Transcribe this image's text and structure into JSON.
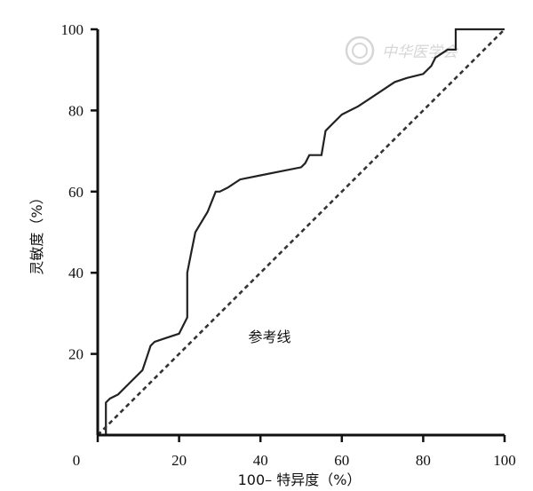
{
  "chart_data": {
    "type": "line",
    "xlabel": "100– 特异度（%）",
    "ylabel": "灵敏度（%）",
    "xlim": [
      0,
      100
    ],
    "ylim": [
      0,
      100
    ],
    "x_ticks": [
      "0",
      "20",
      "40",
      "60",
      "80",
      "100"
    ],
    "y_ticks": [
      "20",
      "40",
      "60",
      "80",
      "100"
    ],
    "grid": false,
    "series": [
      {
        "style": "solid",
        "color": "#222222",
        "x": [
          2,
          2,
          2,
          3,
          5,
          8,
          11,
          12,
          13,
          14,
          17,
          20,
          21,
          22,
          22,
          23,
          24,
          27,
          29,
          30,
          32,
          35,
          40,
          45,
          50,
          51,
          52,
          53,
          55,
          56,
          58,
          60,
          62,
          64,
          67,
          70,
          73,
          76,
          80,
          82,
          83,
          86,
          87,
          88,
          88,
          90,
          100
        ],
        "y": [
          0,
          5,
          8,
          9,
          10,
          13,
          16,
          19,
          22,
          23,
          24,
          25,
          27,
          29,
          40,
          45,
          50,
          55,
          60,
          60,
          61,
          63,
          64,
          65,
          66,
          67,
          69,
          69,
          69,
          75,
          77,
          79,
          80,
          81,
          83,
          85,
          87,
          88,
          89,
          91,
          93,
          95,
          95,
          95,
          100,
          100,
          100
        ]
      },
      {
        "name": "参考线",
        "style": "dashed",
        "color": "#333333",
        "x": [
          0,
          100
        ],
        "y": [
          0,
          100
        ]
      }
    ],
    "annotations": [
      {
        "text": "参考线",
        "x": 37,
        "y": 23
      }
    ]
  },
  "watermark": {
    "text": "中华医学会"
  },
  "colors": {
    "axis": "#111111",
    "line": "#222222",
    "watermark": "#d6d6d6"
  }
}
